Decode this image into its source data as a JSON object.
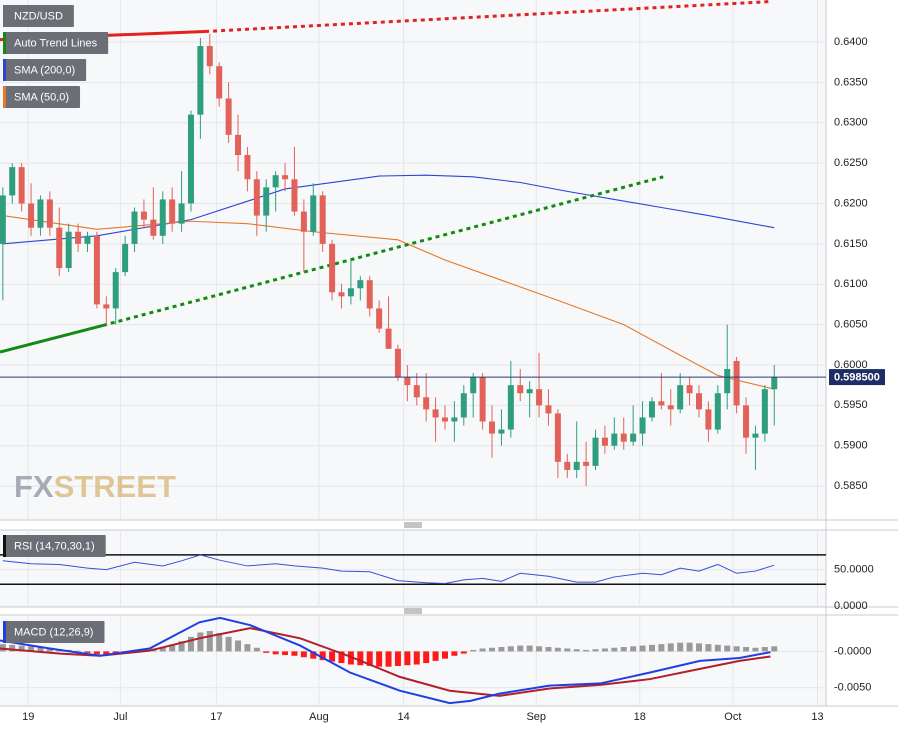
{
  "chart_data": [
    {
      "type": "candlestick",
      "title": "NZD/USD",
      "open": [
        0.615,
        0.621,
        0.6245,
        0.62,
        0.617,
        0.6205,
        0.617,
        0.612,
        0.6165,
        0.615,
        0.616,
        0.6075,
        0.607,
        0.6115,
        0.615,
        0.619,
        0.618,
        0.616,
        0.6205,
        0.6175,
        0.62,
        0.631,
        0.6395,
        0.637,
        0.633,
        0.6285,
        0.626,
        0.623,
        0.6185,
        0.622,
        0.6235,
        0.623,
        0.619,
        0.6165,
        0.621,
        0.615,
        0.609,
        0.6085,
        0.6095,
        0.6105,
        0.607,
        0.6045,
        0.602,
        0.5985,
        0.5975,
        0.596,
        0.5945,
        0.5935,
        0.593,
        0.5935,
        0.5965,
        0.5985,
        0.593,
        0.5915,
        0.592,
        0.5975,
        0.5965,
        0.597,
        0.595,
        0.594,
        0.588,
        0.587,
        0.588,
        0.5875,
        0.591,
        0.59,
        0.5915,
        0.5905,
        0.5915,
        0.5935,
        0.5955,
        0.595,
        0.5945,
        0.5975,
        0.5965,
        0.5945,
        0.592,
        0.5965,
        0.6005,
        0.595,
        0.591,
        0.5915,
        0.597
      ],
      "high": [
        0.622,
        0.625,
        0.625,
        0.6225,
        0.621,
        0.6215,
        0.6195,
        0.6175,
        0.6175,
        0.6165,
        0.6165,
        0.6085,
        0.612,
        0.616,
        0.6195,
        0.6205,
        0.622,
        0.6215,
        0.622,
        0.624,
        0.6315,
        0.6405,
        0.641,
        0.6375,
        0.635,
        0.631,
        0.627,
        0.624,
        0.623,
        0.624,
        0.625,
        0.627,
        0.6205,
        0.6225,
        0.6215,
        0.6155,
        0.61,
        0.613,
        0.611,
        0.611,
        0.608,
        0.6085,
        0.6025,
        0.6,
        0.599,
        0.599,
        0.596,
        0.595,
        0.5955,
        0.5975,
        0.599,
        0.599,
        0.595,
        0.5945,
        0.6005,
        0.5995,
        0.598,
        0.6015,
        0.597,
        0.5945,
        0.589,
        0.593,
        0.5905,
        0.592,
        0.5925,
        0.5935,
        0.5935,
        0.595,
        0.5955,
        0.596,
        0.599,
        0.597,
        0.599,
        0.5985,
        0.5975,
        0.5955,
        0.5975,
        0.605,
        0.601,
        0.596,
        0.5925,
        0.5975,
        0.6
      ],
      "low": [
        0.608,
        0.62,
        0.619,
        0.616,
        0.616,
        0.616,
        0.611,
        0.6115,
        0.614,
        0.614,
        0.607,
        0.605,
        0.605,
        0.611,
        0.614,
        0.617,
        0.6155,
        0.615,
        0.6165,
        0.6165,
        0.619,
        0.628,
        0.636,
        0.632,
        0.6275,
        0.624,
        0.6215,
        0.616,
        0.6165,
        0.619,
        0.6215,
        0.6185,
        0.6115,
        0.616,
        0.614,
        0.608,
        0.607,
        0.6075,
        0.608,
        0.606,
        0.604,
        0.602,
        0.598,
        0.5955,
        0.595,
        0.593,
        0.5905,
        0.592,
        0.5905,
        0.5925,
        0.5935,
        0.592,
        0.5885,
        0.59,
        0.591,
        0.5955,
        0.5935,
        0.5935,
        0.5925,
        0.586,
        0.586,
        0.586,
        0.585,
        0.587,
        0.589,
        0.5895,
        0.5895,
        0.59,
        0.59,
        0.593,
        0.5945,
        0.5925,
        0.594,
        0.595,
        0.5935,
        0.5905,
        0.5915,
        0.5945,
        0.594,
        0.589,
        0.587,
        0.5905,
        0.5925
      ],
      "close": [
        0.621,
        0.6245,
        0.62,
        0.617,
        0.6205,
        0.617,
        0.612,
        0.6165,
        0.615,
        0.616,
        0.6075,
        0.607,
        0.6115,
        0.615,
        0.619,
        0.618,
        0.616,
        0.6205,
        0.6175,
        0.62,
        0.631,
        0.6395,
        0.637,
        0.633,
        0.6285,
        0.626,
        0.623,
        0.6185,
        0.622,
        0.6235,
        0.623,
        0.619,
        0.6165,
        0.621,
        0.615,
        0.609,
        0.6085,
        0.6095,
        0.6105,
        0.607,
        0.6045,
        0.602,
        0.5985,
        0.5975,
        0.596,
        0.5945,
        0.5935,
        0.593,
        0.5935,
        0.5965,
        0.5985,
        0.593,
        0.5915,
        0.592,
        0.5975,
        0.5965,
        0.597,
        0.595,
        0.594,
        0.588,
        0.587,
        0.588,
        0.5875,
        0.591,
        0.59,
        0.5915,
        0.5905,
        0.5915,
        0.5935,
        0.5955,
        0.595,
        0.5945,
        0.5975,
        0.5965,
        0.5945,
        0.592,
        0.5965,
        0.5995,
        0.595,
        0.591,
        0.5915,
        0.597,
        0.5985
      ],
      "up_color": "#2f9e7e",
      "down_color": "#e2625a",
      "ylim": [
        0.5808,
        0.6452
      ],
      "yticks": [
        {
          "value": 0.585,
          "label": "0.5850"
        },
        {
          "value": 0.59,
          "label": "0.5900"
        },
        {
          "value": 0.595,
          "label": "0.5950"
        },
        {
          "value": 0.6,
          "label": "0.6000"
        },
        {
          "value": 0.605,
          "label": "0.6050"
        },
        {
          "value": 0.61,
          "label": "0.6100"
        },
        {
          "value": 0.615,
          "label": "0.6150"
        },
        {
          "value": 0.62,
          "label": "0.6200"
        },
        {
          "value": 0.625,
          "label": "0.6250"
        },
        {
          "value": 0.63,
          "label": "0.6300"
        },
        {
          "value": 0.635,
          "label": "0.6350"
        },
        {
          "value": 0.64,
          "label": "0.6400"
        }
      ],
      "trend_lines": {
        "name": "Auto Trend Lines",
        "color": "#138a13",
        "lines": [
          {
            "color": "#e3211f",
            "style": "solid",
            "x": [
              -0.3,
              21.5
            ],
            "values": [
              0.6403,
              0.6413
            ]
          },
          {
            "color": "#e3211f",
            "style": "dotted",
            "x": [
              21.5,
              81.5
            ],
            "values": [
              0.6413,
              0.645
            ]
          },
          {
            "color": "#138a13",
            "style": "solid",
            "x": [
              -0.3,
              10.65
            ],
            "values": [
              0.6016,
              0.6049
            ]
          },
          {
            "color": "#138a13",
            "style": "dotted",
            "x": [
              10.65,
              70.2
            ],
            "values": [
              0.6049,
              0.6233
            ]
          }
        ]
      },
      "series": [
        {
          "name": "SMA (200,0)",
          "color": "#2a45d8",
          "x": [
            0,
            10,
            20,
            30,
            40,
            45,
            50,
            55,
            60,
            65,
            70,
            75,
            82
          ],
          "values": [
            0.615,
            0.616,
            0.618,
            0.6218,
            0.6234,
            0.6235,
            0.6233,
            0.6226,
            0.6215,
            0.6205,
            0.6195,
            0.6185,
            0.617
          ]
        },
        {
          "name": "SMA (50,0)",
          "color": "#e5782a",
          "x": [
            0,
            10,
            20,
            26,
            33,
            42,
            47,
            53,
            59,
            66,
            72,
            76,
            82
          ],
          "values": [
            0.6185,
            0.6168,
            0.6178,
            0.6175,
            0.6165,
            0.6155,
            0.613,
            0.6105,
            0.608,
            0.605,
            0.6012,
            0.5987,
            0.597
          ]
        }
      ],
      "last_price": {
        "value": 0.5985,
        "label": "0.598500"
      },
      "watermark": [
        "FX",
        "STREET"
      ]
    },
    {
      "type": "line",
      "title": "RSI (14,70,30,1)",
      "series": [
        {
          "color": "#3452d6",
          "x": [
            0,
            3,
            6,
            9,
            11,
            14,
            17,
            19,
            21,
            23,
            26,
            29,
            31,
            34,
            36,
            39,
            42,
            45,
            47,
            49,
            51,
            53,
            55,
            58,
            61,
            63,
            65,
            68,
            70,
            72,
            74,
            76,
            78,
            80,
            82
          ],
          "values": [
            62,
            58,
            57,
            52,
            50,
            60,
            55,
            62,
            70,
            63,
            55,
            58,
            55,
            52,
            48,
            47,
            35,
            32,
            31,
            36,
            38,
            34,
            45,
            41,
            33,
            33,
            40,
            45,
            43,
            52,
            48,
            57,
            45,
            48,
            56
          ]
        }
      ],
      "levels": [
        70,
        30
      ],
      "ylim": [
        -1,
        104
      ],
      "yticks": [
        {
          "value": 50,
          "label": "50.0000"
        },
        {
          "value": 0,
          "label": "0.0000"
        }
      ]
    },
    {
      "type": "macd",
      "title": "MACD (12,26,9)",
      "macd": {
        "color": "#1f3fe0",
        "x": [
          -0.3,
          5,
          10.3,
          15.6,
          20.9,
          23.1,
          26.3,
          31.6,
          36.9,
          42.2,
          47.5,
          49.7,
          52.8,
          58.1,
          63.5,
          68.8,
          74.1,
          78.3,
          81.6
        ],
        "values": [
          0.0015,
          0.0004,
          -0.0006,
          0.0004,
          0.004,
          0.0046,
          0.0036,
          0.0008,
          -0.0029,
          -0.0054,
          -0.0071,
          -0.0068,
          -0.0058,
          -0.0047,
          -0.0044,
          -0.0029,
          -0.0013,
          -0.0009,
          -0.0001
        ]
      },
      "signal": {
        "color": "#b0202a",
        "x": [
          -0.3,
          6.1,
          10.3,
          15.6,
          20.9,
          26.3,
          31.6,
          36.9,
          42.2,
          47.5,
          52.8,
          58.1,
          63.5,
          68.8,
          74.1,
          78.3,
          81.6
        ],
        "values": [
          0.0004,
          -0.0003,
          -0.0006,
          0.0001,
          0.0018,
          0.0032,
          0.0018,
          -0.0007,
          -0.0035,
          -0.0054,
          -0.0061,
          -0.0051,
          -0.0046,
          -0.0038,
          -0.0024,
          -0.0013,
          -0.0007
        ]
      },
      "histogram": {
        "up_color": "#9a9a9a",
        "down_color": "#ff1a1a",
        "values": [
          0.001,
          0.0009,
          0.0008,
          0.0007,
          0.0006,
          0.0005,
          0.0003,
          0.0002,
          0.0001,
          -0.0002,
          -0.0004,
          -0.0005,
          -0.0003,
          -0.0001,
          0.0001,
          0.0003,
          0.0004,
          0.0006,
          0.0009,
          0.0014,
          0.002,
          0.0026,
          0.0028,
          0.0025,
          0.002,
          0.0015,
          0.001,
          0.0005,
          -0.0002,
          -0.0004,
          -0.0005,
          -0.0006,
          -0.0008,
          -0.001,
          -0.0012,
          -0.0014,
          -0.0016,
          -0.0018,
          -0.0019,
          -0.002,
          -0.0021,
          -0.0021,
          -0.002,
          -0.0019,
          -0.0018,
          -0.0016,
          -0.0013,
          -0.001,
          -0.0006,
          -0.0003,
          0.0002,
          0.0004,
          0.0005,
          0.0006,
          0.0007,
          0.0008,
          0.0008,
          0.0007,
          0.0006,
          0.0005,
          0.0004,
          0.0003,
          0.0002,
          0.0003,
          0.0004,
          0.0005,
          0.0006,
          0.0007,
          0.0008,
          0.0009,
          0.001,
          0.0011,
          0.0012,
          0.0012,
          0.0011,
          0.001,
          0.0009,
          0.0008,
          0.0007,
          0.0006,
          0.0005,
          0.0006,
          0.0007
        ]
      },
      "ylim": [
        -0.0075,
        0.005
      ],
      "yticks": [
        {
          "value": 0,
          "label": "-0.0000"
        },
        {
          "value": -0.005,
          "label": "-0.0050"
        }
      ],
      "xlim": [
        -0.3,
        87.5
      ],
      "xticks": [
        {
          "value": 2.7,
          "label": "19"
        },
        {
          "value": 12.5,
          "label": "Jul"
        },
        {
          "value": 22.7,
          "label": "17"
        },
        {
          "value": 33.6,
          "label": "Aug"
        },
        {
          "value": 42.6,
          "label": "14"
        },
        {
          "value": 56.7,
          "label": "Sep"
        },
        {
          "value": 67.7,
          "label": "18"
        },
        {
          "value": 77.6,
          "label": "Oct"
        },
        {
          "value": 86.6,
          "label": "13"
        }
      ]
    }
  ]
}
